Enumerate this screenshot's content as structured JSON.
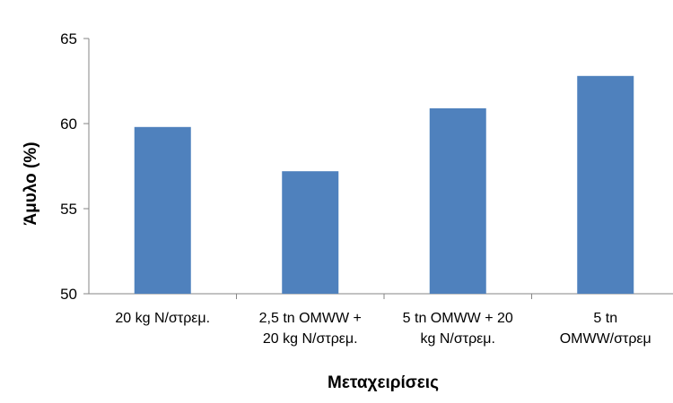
{
  "chart_data": {
    "type": "bar",
    "categories": [
      [
        "20 kg N/στρεμ."
      ],
      [
        "2,5 tn OMWW +",
        "20 kg N/στρεμ."
      ],
      [
        "5 tn OMWW + 20",
        "kg N/στρεμ."
      ],
      [
        "5 tn",
        "OMWW/στρεμ"
      ]
    ],
    "values": [
      59.8,
      57.2,
      60.9,
      62.8
    ],
    "xlabel": "Μεταχειρίσεις",
    "ylabel": "Άμυλο (%)",
    "ylim": [
      50,
      65
    ],
    "yticks": [
      "50",
      "55",
      "60",
      "65"
    ],
    "grid": false,
    "legend": "none",
    "bar_color": "#4F81BD",
    "axis_color": "#868686"
  }
}
